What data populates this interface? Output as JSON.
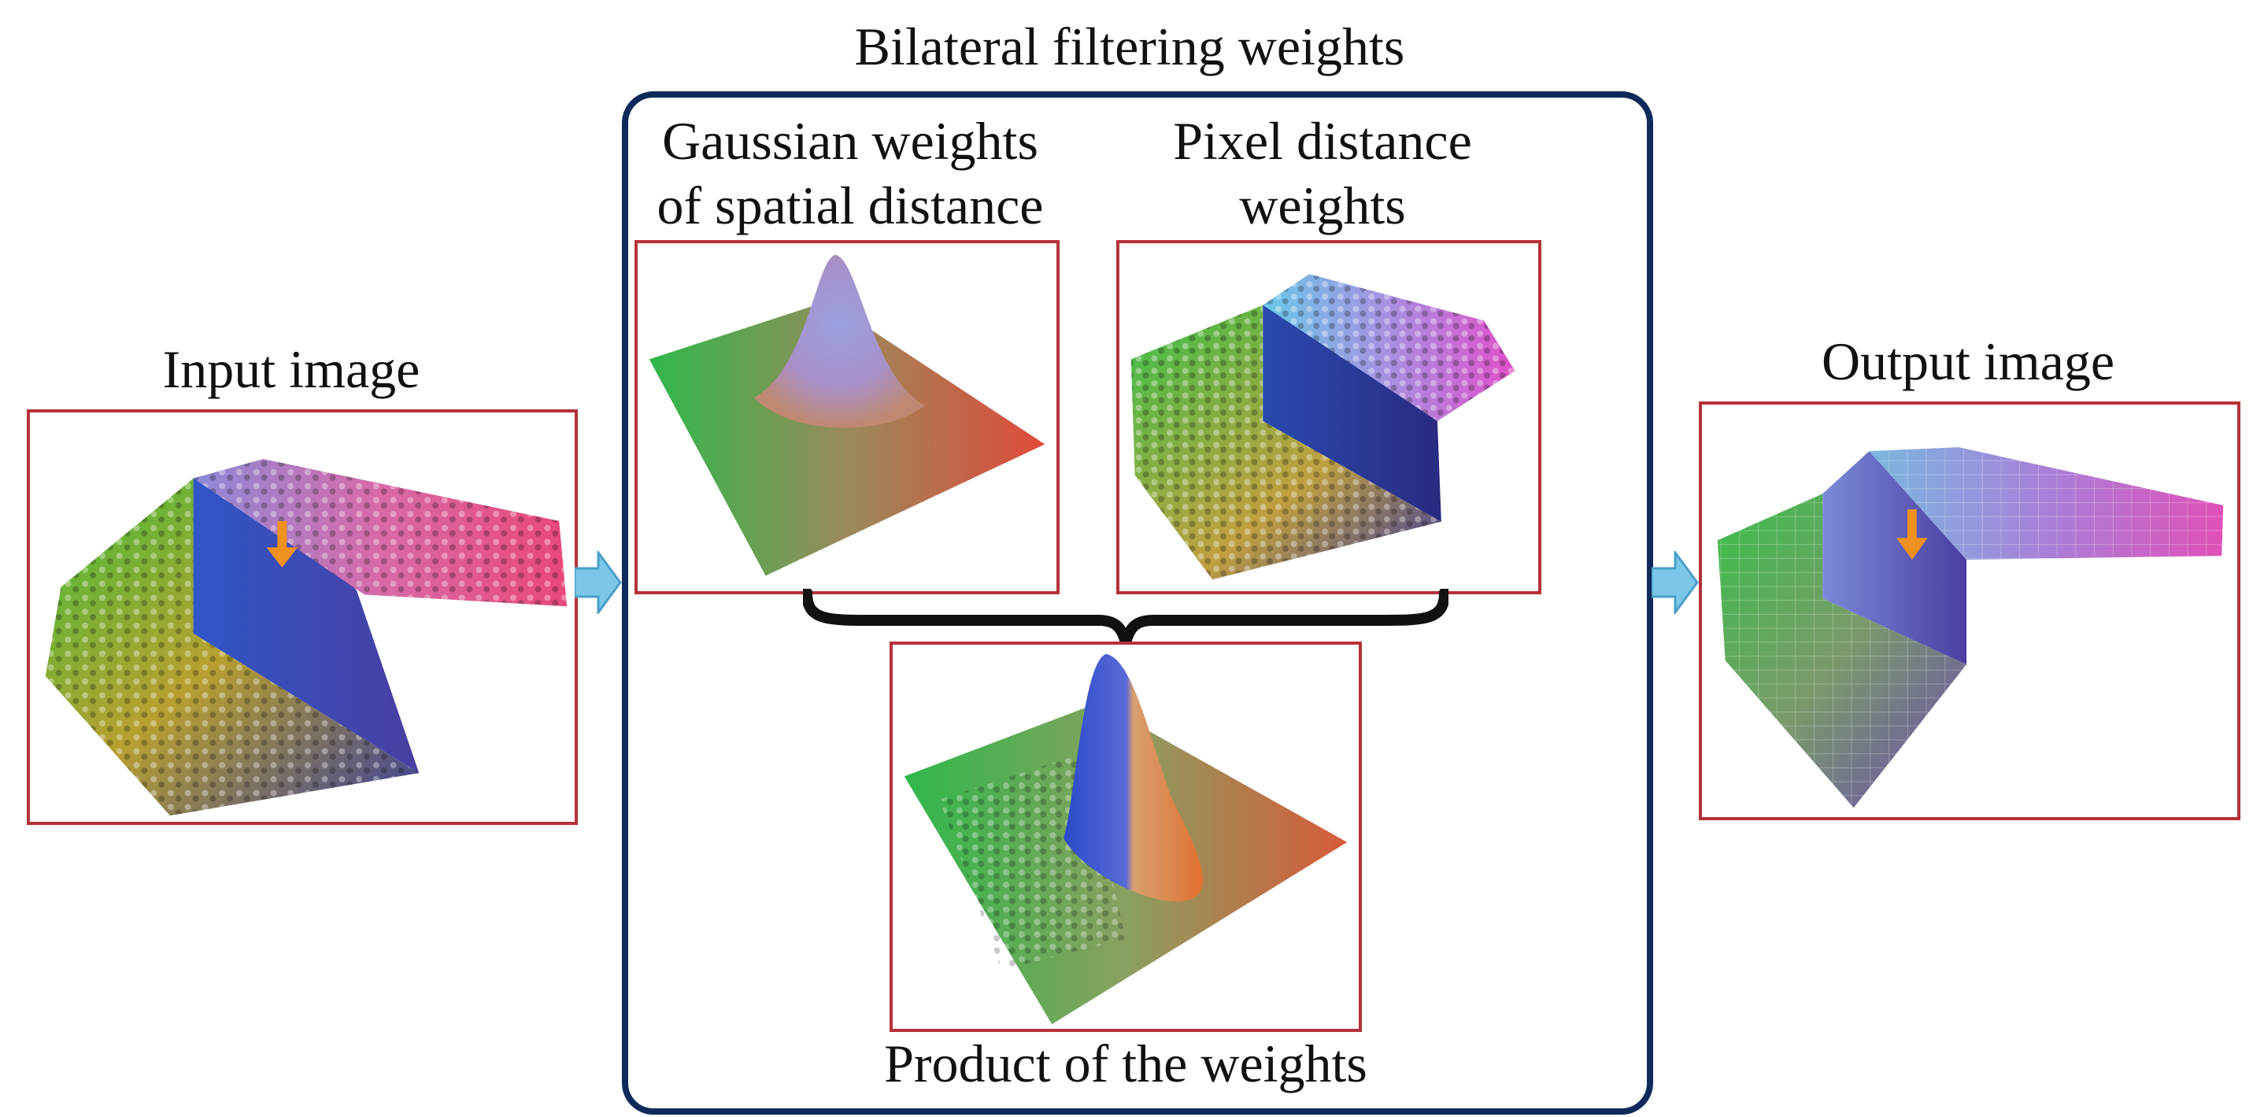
{
  "diagram": {
    "title": "Bilateral filtering weights",
    "input_label": "Input image",
    "output_label": "Output image",
    "gaussian_label_line1": "Gaussian weights",
    "gaussian_label_line2": "of spatial distance",
    "pixel_label_line1": "Pixel distance",
    "pixel_label_line2": "weights",
    "product_label": "Product of the weights"
  },
  "colors": {
    "panel_border": "#b5313a",
    "group_border": "#0e2a5a",
    "flow_arrow": "#7cc7e8",
    "marker_arrow": "#f0901e",
    "brace": "#111111"
  },
  "icons": {
    "flow": "arrow-right-icon",
    "marker": "arrow-down-icon",
    "brace": "curly-brace-icon"
  }
}
